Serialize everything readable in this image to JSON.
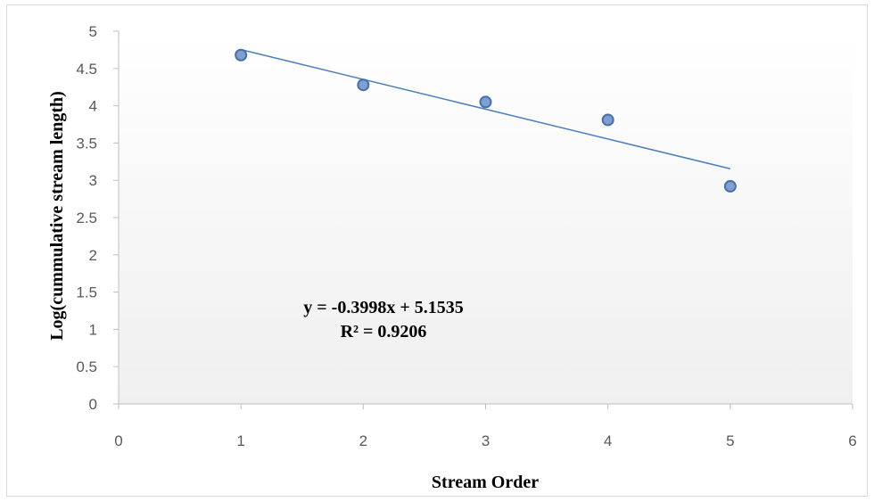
{
  "chart_data": {
    "type": "scatter",
    "x": [
      1,
      2,
      3,
      4,
      5
    ],
    "y": [
      4.68,
      4.28,
      4.05,
      3.81,
      2.92
    ],
    "xlabel": "Stream Order",
    "ylabel": "Log(cummulative stream length)",
    "xlim": [
      0,
      6
    ],
    "ylim": [
      0,
      5
    ],
    "xticks": [
      "0",
      "1",
      "2",
      "3",
      "4",
      "5",
      "6"
    ],
    "yticks": [
      "0",
      "0.5",
      "1",
      "1.5",
      "2",
      "2.5",
      "3",
      "3.5",
      "4",
      "4.5",
      "5"
    ],
    "trendline": {
      "type": "linear",
      "slope": -0.3998,
      "intercept": 5.1535,
      "x_range": [
        1,
        5
      ]
    },
    "annotations": [
      "y = -0.3998x + 5.1535",
      "R² = 0.9206"
    ],
    "grid": false,
    "legend": "none",
    "colors": {
      "marker_fill": "#7f9ed3",
      "marker_stroke": "#4a6fa5",
      "trendline": "#4a7ebb",
      "axis": "#bfbfbf",
      "tick_text": "#595959"
    }
  }
}
